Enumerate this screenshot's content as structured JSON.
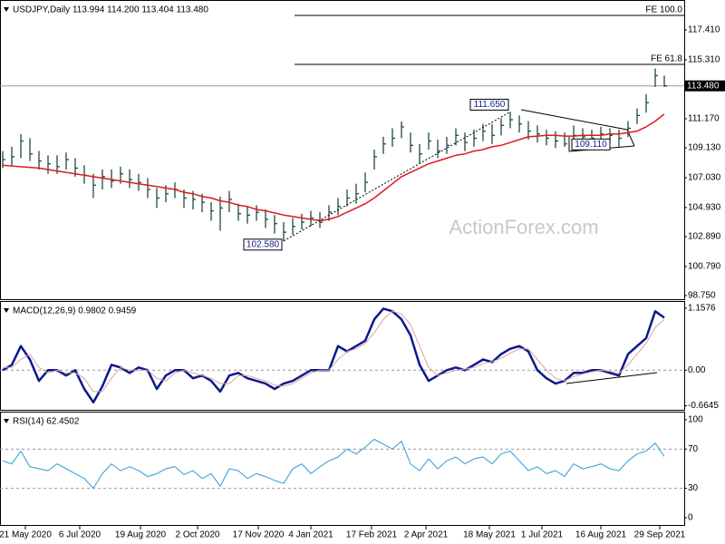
{
  "watermark": "ActionForex.com",
  "chart_data": [
    {
      "type": "ohlc",
      "title": "USDJPY,Daily 113.994 114.200 113.404 113.480",
      "color": "#1d4a3b",
      "xlim": [
        -0.3,
        75.2
      ],
      "ylim": [
        98.49,
        119.45
      ],
      "yticks": [
        {
          "value": 117.41,
          "label": "117.410"
        },
        {
          "value": 115.31,
          "label": "115.310"
        },
        {
          "value": 111.17,
          "label": "111.170"
        },
        {
          "value": 109.13,
          "label": "109.130"
        },
        {
          "value": 107.03,
          "label": "107.030"
        },
        {
          "value": 104.93,
          "label": "104.930"
        },
        {
          "value": 102.89,
          "label": "102.890"
        },
        {
          "value": 100.79,
          "label": "100.790"
        },
        {
          "value": 98.75,
          "label": "98.750"
        }
      ],
      "high": [
        108.9,
        109.2,
        110.1,
        109.8,
        108.9,
        108.6,
        108.6,
        108.8,
        108.4,
        107.9,
        107.3,
        107.6,
        107.6,
        107.8,
        107.6,
        107.3,
        107.0,
        106.3,
        106.5,
        106.7,
        106.2,
        106.1,
        105.9,
        105.3,
        105.7,
        106.1,
        105.2,
        105.0,
        105.1,
        104.8,
        104.4,
        103.9,
        104.2,
        104.5,
        104.7,
        104.6,
        105.1,
        105.6,
        106.2,
        106.6,
        107.4,
        109.0,
        109.9,
        110.5,
        110.97,
        110.2,
        109.4,
        110.2,
        109.7,
        109.9,
        110.5,
        110.2,
        110.4,
        110.8,
        110.8,
        111.2,
        111.65,
        111.4,
        111.0,
        110.7,
        110.4,
        110.3,
        110.2,
        110.7,
        110.5,
        110.4,
        110.6,
        110.5,
        110.4,
        111.0,
        111.9,
        112.9,
        114.7,
        114.2
      ],
      "low": [
        107.7,
        107.9,
        108.4,
        108.2,
        107.6,
        107.3,
        107.3,
        107.6,
        107.1,
        106.6,
        105.6,
        106.2,
        106.3,
        106.6,
        106.3,
        106.1,
        105.6,
        104.9,
        105.3,
        105.6,
        104.9,
        104.8,
        104.6,
        104.0,
        103.3,
        104.6,
        104.0,
        103.8,
        104.0,
        103.5,
        103.1,
        102.58,
        103.0,
        103.4,
        103.6,
        103.5,
        104.0,
        104.4,
        105.0,
        105.2,
        106.0,
        107.6,
        108.7,
        109.2,
        109.8,
        108.8,
        108.0,
        109.0,
        108.4,
        108.7,
        109.3,
        108.9,
        109.2,
        109.6,
        109.4,
        110.0,
        110.5,
        110.2,
        109.7,
        109.5,
        109.3,
        109.11,
        109.2,
        109.4,
        109.4,
        109.3,
        109.6,
        109.5,
        109.2,
        109.9,
        110.8,
        111.6,
        113.4,
        113.404
      ],
      "close": [
        108.3,
        108.5,
        109.6,
        108.7,
        108.2,
        108.0,
        107.8,
        108.3,
        107.7,
        107.2,
        106.5,
        107.1,
        106.8,
        107.3,
        106.9,
        106.7,
        106.2,
        105.6,
        105.9,
        106.2,
        105.6,
        105.5,
        105.3,
        104.7,
        104.9,
        105.5,
        104.5,
        104.4,
        104.6,
        104.1,
        103.8,
        103.2,
        103.6,
        103.9,
        104.2,
        103.9,
        104.6,
        105.0,
        105.6,
        105.9,
        106.7,
        108.5,
        109.4,
        109.8,
        110.6,
        109.3,
        108.7,
        109.6,
        108.9,
        109.3,
        110.0,
        109.5,
        109.8,
        110.3,
        110.0,
        110.7,
        111.1,
        110.8,
        110.3,
        110.1,
        109.8,
        109.6,
        109.4,
        110.0,
        109.9,
        109.8,
        110.1,
        110.0,
        109.8,
        110.5,
        111.4,
        112.3,
        114.2,
        113.48
      ],
      "series": [
        {
          "color": "#e0191e",
          "values": [
            107.9,
            107.85,
            107.8,
            107.75,
            107.7,
            107.6,
            107.5,
            107.4,
            107.3,
            107.2,
            107.1,
            107.0,
            106.9,
            106.8,
            106.7,
            106.6,
            106.5,
            106.4,
            106.3,
            106.2,
            106.0,
            105.9,
            105.7,
            105.6,
            105.4,
            105.3,
            105.1,
            105.0,
            104.8,
            104.7,
            104.55,
            104.4,
            104.3,
            104.2,
            104.1,
            104.0,
            104.1,
            104.3,
            104.6,
            104.9,
            105.2,
            105.6,
            106.1,
            106.6,
            107.1,
            107.4,
            107.7,
            108.0,
            108.2,
            108.4,
            108.6,
            108.7,
            108.9,
            109.0,
            109.2,
            109.3,
            109.5,
            109.7,
            109.9,
            109.95,
            110.0,
            110.0,
            109.95,
            109.95,
            110.0,
            110.0,
            110.0,
            110.1,
            110.1,
            110.2,
            110.3,
            110.6,
            111.0,
            111.5
          ]
        }
      ],
      "fib_levels": [
        {
          "label": "FE 100.0",
          "value": 118.43
        },
        {
          "label": "FE 61.8",
          "value": 114.99
        }
      ],
      "last_price": {
        "value": 113.48,
        "label": "113.480"
      },
      "annotations": [
        {
          "label": "102.580",
          "value": 102.58,
          "x": 31
        },
        {
          "label": "111.650",
          "value": 111.65,
          "x": 56
        },
        {
          "label": "109.110",
          "value": 109.11,
          "x": 61
        }
      ]
    },
    {
      "type": "line",
      "title": "MACD(12,26,9) 0.9802 0.9459",
      "xlim": [
        -0.3,
        75.2
      ],
      "ylim": [
        -0.74,
        1.275
      ],
      "yticks": [
        1.1576,
        {
          "value": 0,
          "label": "0.00"
        },
        -0.6645
      ],
      "levels": [
        0
      ],
      "series": [
        {
          "color": "#0a1a8c",
          "width": 2.5,
          "values": [
            0.0,
            0.1,
            0.45,
            0.2,
            -0.2,
            0.0,
            0.0,
            -0.1,
            0.0,
            -0.35,
            -0.6,
            -0.3,
            0.1,
            0.05,
            -0.05,
            0.05,
            0.0,
            -0.35,
            -0.1,
            0.0,
            0.0,
            -0.15,
            -0.1,
            -0.2,
            -0.4,
            -0.1,
            -0.05,
            -0.15,
            -0.2,
            -0.25,
            -0.35,
            -0.25,
            -0.2,
            -0.1,
            0.0,
            0.0,
            0.0,
            0.45,
            0.35,
            0.45,
            0.55,
            0.95,
            1.15,
            1.1,
            0.95,
            0.65,
            0.1,
            -0.2,
            -0.1,
            0.0,
            0.05,
            0.0,
            0.1,
            0.2,
            0.15,
            0.3,
            0.4,
            0.45,
            0.35,
            0.0,
            -0.15,
            -0.25,
            -0.2,
            -0.05,
            -0.05,
            0.0,
            0.0,
            -0.05,
            -0.1,
            0.3,
            0.45,
            0.6,
            1.1,
            0.9802
          ]
        },
        {
          "color": "#d9a3a8",
          "width": 1,
          "values": [
            0.05,
            0.05,
            0.2,
            0.3,
            0.05,
            -0.05,
            0.0,
            -0.05,
            -0.05,
            -0.15,
            -0.4,
            -0.4,
            -0.15,
            0.05,
            0.0,
            0.0,
            0.0,
            -0.15,
            -0.2,
            -0.05,
            0.0,
            -0.05,
            -0.1,
            -0.15,
            -0.25,
            -0.25,
            -0.1,
            -0.1,
            -0.15,
            -0.2,
            -0.28,
            -0.3,
            -0.25,
            -0.15,
            -0.05,
            0.0,
            0.0,
            0.2,
            0.35,
            0.4,
            0.5,
            0.7,
            0.95,
            1.1,
            1.05,
            0.85,
            0.45,
            0.05,
            -0.1,
            -0.05,
            0.0,
            0.02,
            0.05,
            0.12,
            0.16,
            0.22,
            0.32,
            0.4,
            0.4,
            0.2,
            0.0,
            -0.15,
            -0.2,
            -0.12,
            -0.07,
            -0.03,
            0.0,
            -0.02,
            -0.06,
            0.1,
            0.3,
            0.5,
            0.8,
            0.9459
          ]
        }
      ]
    },
    {
      "type": "line",
      "title": "RSI(14) 62.4502",
      "xlim": [
        -0.3,
        75.2
      ],
      "ylim": [
        -8.3,
        107.3
      ],
      "yticks": [
        100,
        70,
        30,
        0
      ],
      "levels": [
        70,
        30
      ],
      "xticks": [
        {
          "value": 2.5,
          "label": "21 May 2020"
        },
        {
          "value": 8.5,
          "label": "6 Jul 2020"
        },
        {
          "value": 15.2,
          "label": "19 Aug 2020"
        },
        {
          "value": 21.5,
          "label": "2 Oct 2020"
        },
        {
          "value": 28.2,
          "label": "17 Nov 2020"
        },
        {
          "value": 34,
          "label": "4 Jan 2021"
        },
        {
          "value": 40.7,
          "label": "17 Feb 2021"
        },
        {
          "value": 46.7,
          "label": "2 Apr 2021"
        },
        {
          "value": 53.7,
          "label": "18 May 2021"
        },
        {
          "value": 59.5,
          "label": "1 Jul 2021"
        },
        {
          "value": 66,
          "label": "16 Aug 2021"
        },
        {
          "value": 72.5,
          "label": "29 Sep 2021"
        }
      ],
      "series": [
        {
          "color": "#2f9ad8",
          "width": 1,
          "values": [
            58,
            55,
            68,
            52,
            50,
            48,
            55,
            50,
            45,
            40,
            30,
            45,
            55,
            48,
            52,
            48,
            42,
            45,
            50,
            52,
            44,
            48,
            40,
            45,
            32,
            50,
            48,
            40,
            45,
            42,
            38,
            35,
            50,
            55,
            45,
            52,
            58,
            62,
            70,
            65,
            72,
            80,
            75,
            70,
            78,
            55,
            48,
            60,
            50,
            58,
            62,
            55,
            60,
            62,
            55,
            65,
            68,
            58,
            48,
            52,
            45,
            48,
            42,
            55,
            50,
            52,
            55,
            50,
            48,
            58,
            65,
            68,
            76,
            62.4502
          ]
        }
      ]
    }
  ]
}
